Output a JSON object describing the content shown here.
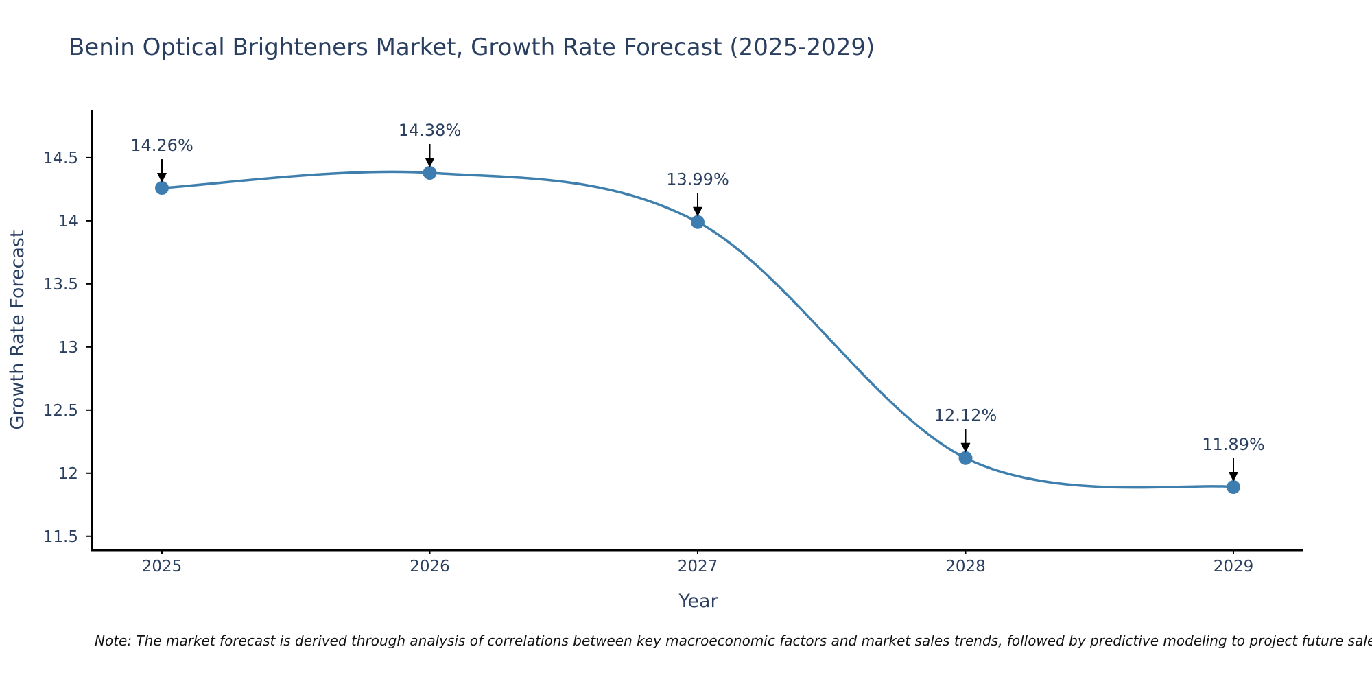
{
  "chart_data": {
    "type": "line",
    "title": "Benin Optical Brighteners Market, Growth Rate Forecast (2025-2029)",
    "xlabel": "Year",
    "ylabel": "Growth Rate Forecast",
    "categories": [
      "2025",
      "2026",
      "2027",
      "2028",
      "2029"
    ],
    "values": [
      14.26,
      14.38,
      13.99,
      12.12,
      11.89
    ],
    "data_labels": [
      "14.26%",
      "14.38%",
      "13.99%",
      "12.12%",
      "11.89%"
    ],
    "ylim": [
      11.39,
      14.88
    ],
    "yticks": [
      11.5,
      12,
      12.5,
      13,
      13.5,
      14,
      14.5
    ],
    "ytick_labels": [
      "11.5",
      "12",
      "12.5",
      "13",
      "13.5",
      "14",
      "14.5"
    ],
    "line_shape": "spline",
    "grid": false,
    "legend": "none",
    "line_color": "#3f7fad",
    "marker_color": "#3d7db0",
    "note": "Note: The market forecast is derived through analysis of correlations between key macroeconomic factors and market sales trends, followed by predictive modeling to project future sales."
  }
}
